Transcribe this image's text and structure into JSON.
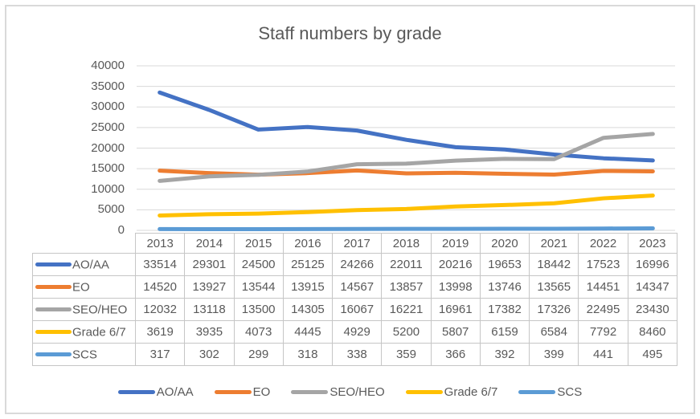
{
  "window": {
    "background": "#FFFFFF",
    "frame_border_color": "#D9D9D9"
  },
  "chart_data": {
    "type": "line",
    "title": "Staff numbers by grade",
    "categories": [
      "2013",
      "2014",
      "2015",
      "2016",
      "2017",
      "2018",
      "2019",
      "2020",
      "2021",
      "2022",
      "2023"
    ],
    "series": [
      {
        "name": "AO/AA",
        "color": "#4472C4",
        "values": [
          33514,
          29301,
          24500,
          25125,
          24266,
          22011,
          20216,
          19653,
          18442,
          17523,
          16996
        ]
      },
      {
        "name": "EO",
        "color": "#ED7D31",
        "values": [
          14520,
          13927,
          13544,
          13915,
          14567,
          13857,
          13998,
          13746,
          13565,
          14451,
          14347
        ]
      },
      {
        "name": "SEO/HEO",
        "color": "#A5A5A5",
        "values": [
          12032,
          13118,
          13500,
          14305,
          16067,
          16221,
          16961,
          17382,
          17326,
          22495,
          23430
        ]
      },
      {
        "name": "Grade 6/7",
        "color": "#FFC000",
        "values": [
          3619,
          3935,
          4073,
          4445,
          4929,
          5200,
          5807,
          6159,
          6584,
          7792,
          8460
        ]
      },
      {
        "name": "SCS",
        "color": "#5B9BD5",
        "values": [
          317,
          302,
          299,
          318,
          338,
          359,
          366,
          392,
          399,
          441,
          495
        ]
      }
    ],
    "ylim": [
      0,
      40000
    ],
    "ytick_step": 5000,
    "y_tick_labels": [
      "0",
      "5000",
      "10000",
      "15000",
      "20000",
      "25000",
      "30000",
      "35000",
      "40000"
    ],
    "grid": true,
    "grid_color": "#D9D9D9",
    "legend_position": "bottom",
    "show_data_table": true,
    "table_border_color": "#C6C6C6",
    "text_color": "#595959",
    "line_width": 5
  }
}
